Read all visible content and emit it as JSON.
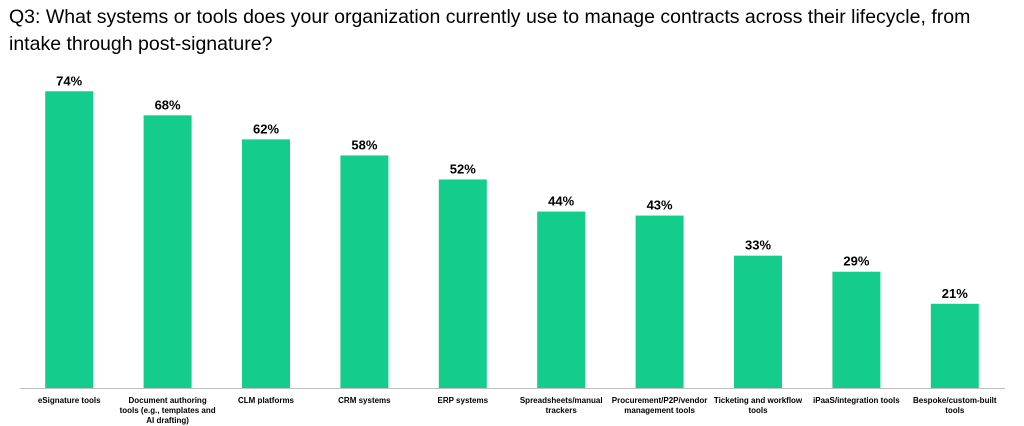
{
  "chart_data": {
    "type": "bar",
    "title": "Q3: What systems or tools does your organization currently use to manage contracts across their lifecycle, from intake through post-signature?",
    "categories": [
      "eSignature tools",
      "Document authoring tools (e.g., templates and AI drafting)",
      "CLM platforms",
      "CRM systems",
      "ERP systems",
      "Spreadsheets/manual trackers",
      "Procurement/P2P/vendor management tools",
      "Ticketing and workflow tools",
      "iPaaS/integration tools",
      "Bespoke/custom-built tools"
    ],
    "category_lines": [
      [
        "eSignature tools"
      ],
      [
        "Document authoring",
        "tools (e.g., templates and",
        "AI drafting)"
      ],
      [
        "CLM platforms"
      ],
      [
        "CRM systems"
      ],
      [
        "ERP systems"
      ],
      [
        "Spreadsheets/manual",
        "trackers"
      ],
      [
        "Procurement/P2P/vendor",
        "management tools"
      ],
      [
        "Ticketing and workflow",
        "tools"
      ],
      [
        "iPaaS/integration tools"
      ],
      [
        "Bespoke/custom-built",
        "tools"
      ]
    ],
    "values": [
      74,
      68,
      62,
      58,
      52,
      44,
      43,
      33,
      29,
      21
    ],
    "value_labels": [
      "74%",
      "68%",
      "62%",
      "58%",
      "52%",
      "44%",
      "43%",
      "33%",
      "29%",
      "21%"
    ],
    "xlabel": "",
    "ylabel": "",
    "ylim": [
      0,
      100
    ],
    "grid": false,
    "legend": "none",
    "bar_color": "#14cc8c",
    "axis_color": "#bfbfbf"
  }
}
